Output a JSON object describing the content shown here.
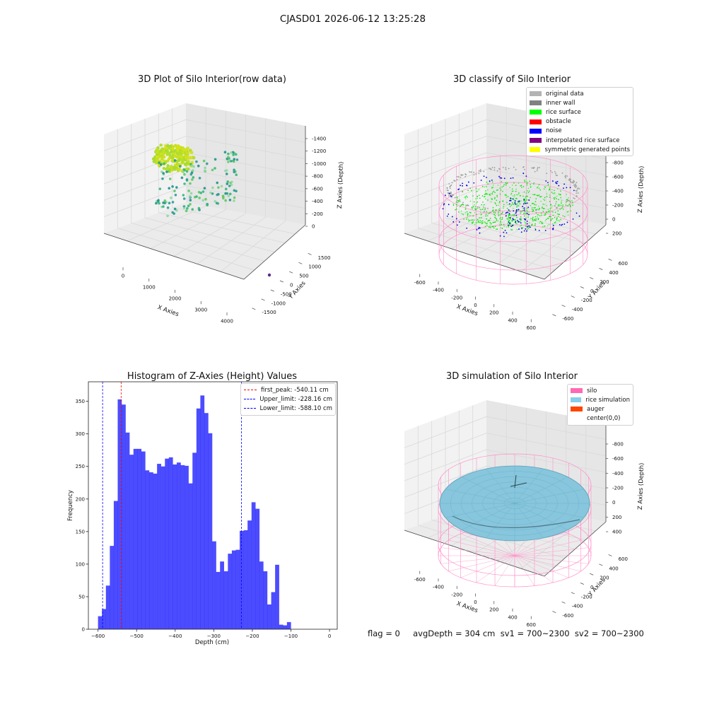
{
  "figure_title": "CJASD01 2026-06-12 13:25:28",
  "status_line": "flag = 0     avgDepth = 304 cm  sv1 = 700~2300  sv2 = 700~2300",
  "chart_data": [
    {
      "type": "scatter",
      "projection": "3d",
      "title": "3D Plot of Silo Interior(row data)",
      "xlabel": "X Axies",
      "ylabel": "Y Axies",
      "zlabel": "Z Axies (Depth)",
      "xticks": [
        "0",
        "1000",
        "2000",
        "3000",
        "4000"
      ],
      "yticks": [
        "-1500",
        "-1000",
        "-500",
        "0",
        "500",
        "1000",
        "1500"
      ],
      "zticks": [
        "0",
        "-200",
        "-400",
        "-600",
        "-800",
        "-1000",
        "-1200",
        "-1400"
      ],
      "colormap": "viridis (depth-colored, yellow-green points)"
    },
    {
      "type": "scatter",
      "projection": "3d",
      "title": "3D classify of Silo Interior",
      "xlabel": "X Axies",
      "ylabel": "Y Axies",
      "zlabel": "Z Axies (Depth)",
      "xticks": [
        "-600",
        "-400",
        "-200",
        "0",
        "200",
        "400",
        "600"
      ],
      "yticks": [
        "-600",
        "-400",
        "-200",
        "0",
        "200",
        "400",
        "600"
      ],
      "zticks": [
        "200",
        "0",
        "-200",
        "-400",
        "-600",
        "-800"
      ],
      "legend": [
        {
          "label": "original data",
          "color": "#b3b3b3"
        },
        {
          "label": "inner wall",
          "color": "#808080"
        },
        {
          "label": "rice surface",
          "color": "#00ff00"
        },
        {
          "label": "obstacle",
          "color": "#ff0000"
        },
        {
          "label": "noise",
          "color": "#0000ff"
        },
        {
          "label": "interpolated rice surface",
          "color": "#800080"
        },
        {
          "label": "symmetric generated points",
          "color": "#ffff00"
        }
      ]
    },
    {
      "type": "bar",
      "title": "Histogram of Z-Axies (Height) Values",
      "xlabel": "Depth (cm)",
      "ylabel": "Frequency",
      "xlim": [
        -625,
        20
      ],
      "ylim": [
        0,
        380
      ],
      "xticks": [
        -600,
        -500,
        -400,
        -300,
        -200,
        -100,
        0
      ],
      "yticks": [
        0,
        50,
        100,
        150,
        200,
        250,
        300,
        350
      ],
      "bin_start": -600,
      "bin_width": 10.2,
      "values": [
        20,
        31,
        67,
        128,
        197,
        353,
        345,
        302,
        268,
        277,
        277,
        273,
        244,
        241,
        239,
        254,
        250,
        262,
        264,
        253,
        256,
        252,
        251,
        224,
        271,
        339,
        359,
        332,
        301,
        135,
        88,
        104,
        89,
        116,
        121,
        122,
        151,
        152,
        167,
        195,
        185,
        104,
        89,
        38,
        57,
        99,
        7,
        6,
        11
      ],
      "bar_color": "#0000ff",
      "vlines": [
        {
          "label": "first_peak: -540.11 cm",
          "x": -540.11,
          "color": "#ff0000"
        },
        {
          "label": "Upper_limit: -228.16 cm",
          "x": -228.16,
          "color": "#0000ff"
        },
        {
          "label": "Lower_limit: -588.10 cm",
          "x": -588.1,
          "color": "#0000ff"
        }
      ],
      "legend_position": "top-right"
    },
    {
      "type": "surface",
      "projection": "3d",
      "title": "3D simulation of Silo Interior",
      "xlabel": "X Axies",
      "ylabel": "Y Axies",
      "zlabel": "Z Axies (Depth)",
      "xticks": [
        "-600",
        "-400",
        "-200",
        "0",
        "200",
        "400",
        "600"
      ],
      "yticks": [
        "-600",
        "-400",
        "-200",
        "0",
        "200",
        "400",
        "600"
      ],
      "zticks": [
        "400",
        "200",
        "0",
        "-200",
        "-400",
        "-600",
        "-800"
      ],
      "legend": [
        {
          "label": "silo",
          "color": "#ff69b4"
        },
        {
          "label": "rice simulation",
          "color": "#87ceeb"
        },
        {
          "label": "auger",
          "color": "#ff4500"
        },
        {
          "label": "center(0,0)",
          "color": "#ffffff"
        }
      ]
    }
  ]
}
